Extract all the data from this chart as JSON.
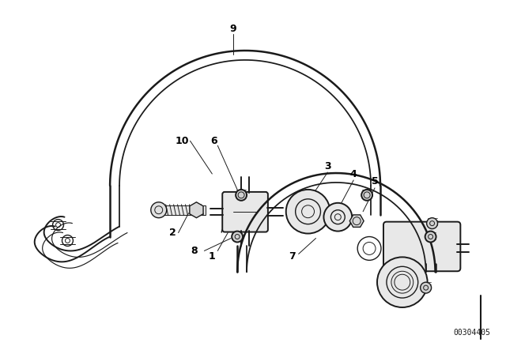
{
  "bg_color": "#ffffff",
  "line_color": "#1a1a1a",
  "label_color": "#000000",
  "part_number": "00304405",
  "figsize": [
    6.4,
    4.48
  ],
  "dpi": 100,
  "lw_pipe": 1.8,
  "lw_main": 1.4,
  "lw_thin": 1.0,
  "lw_hair": 0.7
}
